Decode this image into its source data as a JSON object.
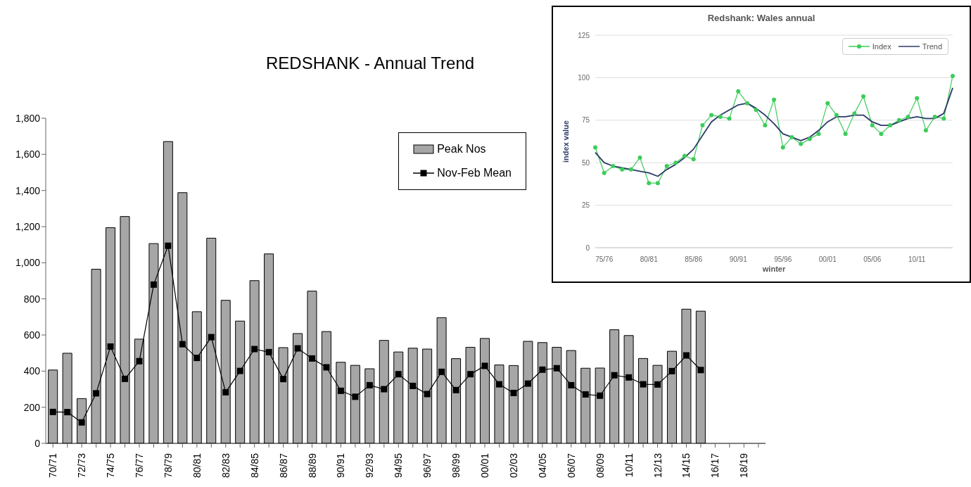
{
  "chart_data": [
    {
      "type": "bar",
      "title": "REDSHANK - Annual Trend",
      "categories": [
        "70/71",
        null,
        "72/73",
        null,
        "74/75",
        null,
        "76/77",
        null,
        "78/79",
        null,
        "80/81",
        null,
        "82/83",
        null,
        "84/85",
        null,
        "86/87",
        null,
        "88/89",
        null,
        "90/91",
        null,
        "92/93",
        null,
        "94/95",
        null,
        "96/97",
        null,
        "98/99",
        null,
        "00/01",
        null,
        "02/03",
        null,
        "04/05",
        null,
        "06/07",
        null,
        "08/09",
        null,
        "10/11",
        null,
        "12/13",
        null,
        "14/15",
        null,
        "16/17",
        null,
        "18/19",
        null
      ],
      "series": [
        {
          "name": "Peak Nos",
          "color": "#a6a6a6",
          "values": [
            406,
            499,
            248,
            964,
            1194,
            1256,
            577,
            1106,
            1671,
            1388,
            729,
            1136,
            792,
            677,
            901,
            1049,
            530,
            608,
            843,
            619,
            449,
            432,
            413,
            570,
            506,
            527,
            522,
            696,
            469,
            532,
            581,
            434,
            431,
            565,
            558,
            532,
            514,
            416,
            417,
            629,
            597,
            470,
            432,
            510,
            743,
            732,
            null,
            null,
            null,
            null
          ]
        },
        {
          "name": "Nov-Feb Mean",
          "type": "line",
          "color": "#000000",
          "marker": "square",
          "values": [
            174,
            173,
            116,
            277,
            536,
            357,
            455,
            879,
            1094,
            549,
            473,
            588,
            283,
            401,
            522,
            505,
            356,
            526,
            470,
            421,
            291,
            258,
            322,
            300,
            383,
            318,
            273,
            396,
            295,
            383,
            429,
            327,
            279,
            331,
            408,
            416,
            322,
            271,
            264,
            377,
            365,
            327,
            326,
            400,
            487,
            406,
            null,
            null,
            null,
            null
          ]
        }
      ],
      "ylim": [
        0,
        1800
      ],
      "yticks": [
        0,
        {
          "value": 200,
          "label": "200"
        },
        {
          "value": 400,
          "label": "400"
        },
        {
          "value": 600,
          "label": "600"
        },
        {
          "value": 800,
          "label": "800"
        },
        {
          "value": 1000,
          "label": "1,000"
        },
        {
          "value": 1200,
          "label": "1,200"
        },
        {
          "value": 1400,
          "label": "1,400"
        },
        {
          "value": 1600,
          "label": "1,600"
        },
        {
          "value": 1800,
          "label": "1,800"
        }
      ],
      "legend": "top right"
    },
    {
      "type": "line",
      "title": "Redshank: Wales annual",
      "xlabel": "winter",
      "ylabel": "index value",
      "categories": [
        null,
        "75/76",
        null,
        null,
        null,
        null,
        "80/81",
        null,
        null,
        null,
        null,
        "85/86",
        null,
        null,
        null,
        null,
        "90/91",
        null,
        null,
        null,
        null,
        "95/96",
        null,
        null,
        null,
        null,
        "00/01",
        null,
        null,
        null,
        null,
        "05/06",
        null,
        null,
        null,
        null,
        "10/11",
        null,
        null,
        null,
        null
      ],
      "series": [
        {
          "name": "Index",
          "color": "#3ccc5a",
          "marker": "circle",
          "values": [
            59,
            44,
            48,
            46,
            46,
            53,
            38,
            38,
            48,
            50,
            54,
            52,
            72,
            78,
            77,
            76,
            92,
            85,
            81,
            72,
            87,
            59,
            65,
            61,
            64,
            67,
            85,
            78,
            67,
            79,
            89,
            72,
            67,
            72,
            75,
            77,
            88,
            69,
            77,
            76,
            101
          ]
        },
        {
          "name": "Trend",
          "color": "#2b3a67",
          "marker": "none",
          "values": [
            56,
            50,
            48,
            47,
            46,
            45,
            44,
            42,
            46,
            49,
            53,
            58,
            66,
            74,
            78,
            81,
            84,
            85,
            82,
            78,
            73,
            67,
            65,
            63,
            65,
            69,
            74,
            77,
            77,
            78,
            78,
            74,
            72,
            72,
            74,
            76,
            77,
            76,
            76,
            79,
            94
          ]
        }
      ],
      "ylim": [
        0,
        125
      ],
      "yticks": [
        0,
        25,
        50,
        75,
        100,
        125
      ],
      "grid": "y",
      "legend": "top right"
    }
  ]
}
